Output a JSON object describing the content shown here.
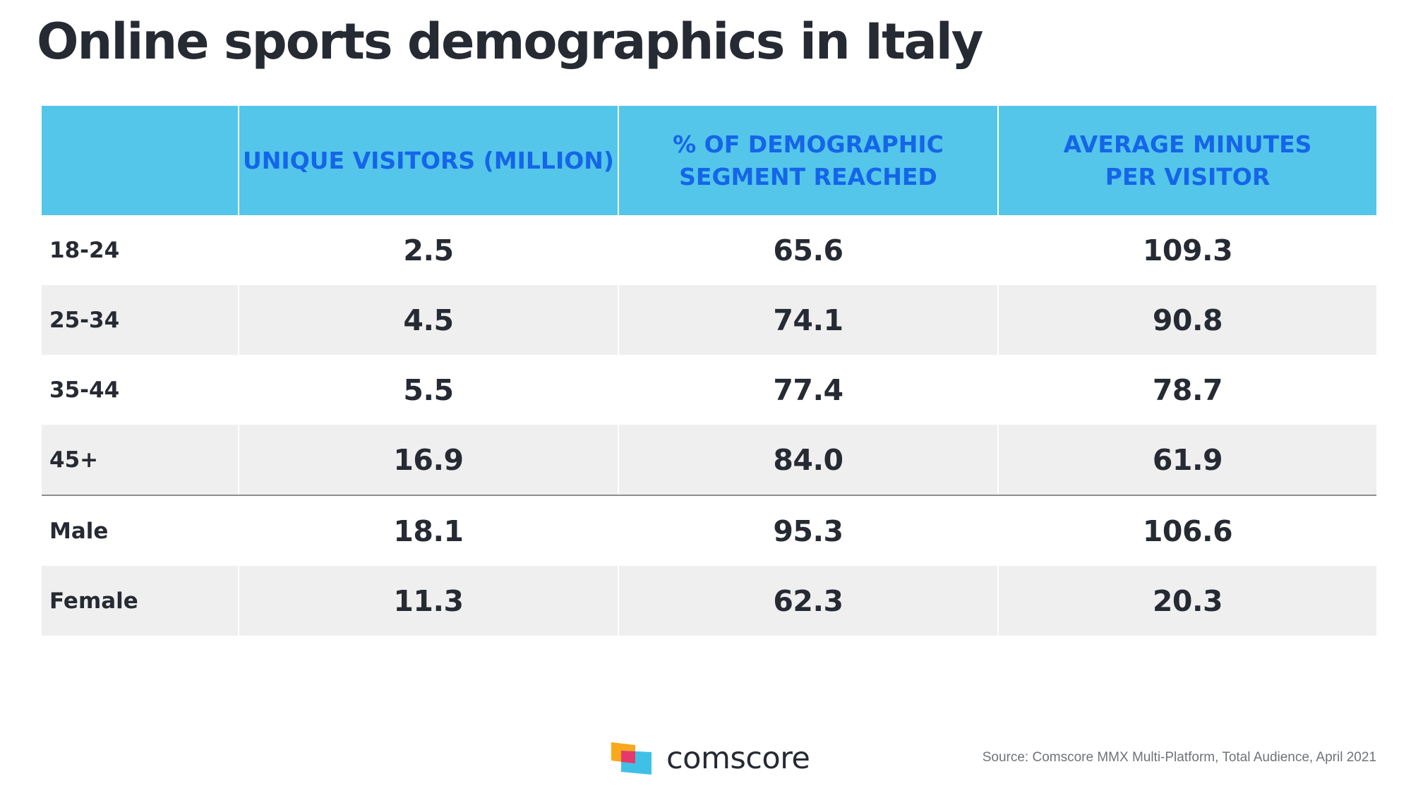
{
  "title": "Online sports demographics in Italy",
  "chart_data": {
    "type": "table",
    "columns": [
      "",
      "UNIQUE VISITORS (MILLION)",
      "% OF DEMOGRAPHIC SEGMENT REACHED",
      "AVERAGE MINUTES PER VISITOR"
    ],
    "rows": [
      {
        "label": "18-24",
        "values": [
          "2.5",
          "65.6",
          "109.3"
        ]
      },
      {
        "label": "25-34",
        "values": [
          "4.5",
          "74.1",
          "90.8"
        ]
      },
      {
        "label": "35-44",
        "values": [
          "5.5",
          "77.4",
          "78.7"
        ]
      },
      {
        "label": "45+",
        "values": [
          "16.9",
          "84.0",
          "61.9"
        ]
      },
      {
        "label": "Male",
        "values": [
          "18.1",
          "95.3",
          "106.6"
        ]
      },
      {
        "label": "Female",
        "values": [
          "11.3",
          "62.3",
          "20.3"
        ]
      }
    ]
  },
  "header_lines": {
    "col1": [
      "UNIQUE VISITORS (MILLION)"
    ],
    "col2": [
      "% OF DEMOGRAPHIC",
      "SEGMENT REACHED"
    ],
    "col3": [
      "AVERAGE MINUTES",
      "PER VISITOR"
    ]
  },
  "colors": {
    "header_bg": "#53c6ea",
    "header_text": "#1565e8",
    "alt_row_bg": "#efefef",
    "text": "#262a33"
  },
  "logo": {
    "wordmark": "comscore",
    "icon": "comscore-logo-icon"
  },
  "source": "Source: Comscore MMX Multi-Platform, Total Audience, April 2021"
}
